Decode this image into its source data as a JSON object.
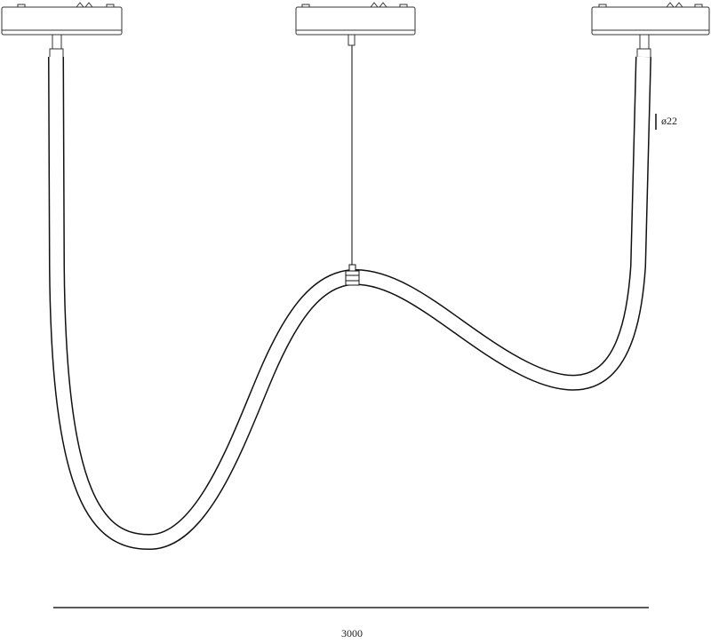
{
  "annotations": {
    "diameter": "ø22",
    "width": "3000"
  }
}
